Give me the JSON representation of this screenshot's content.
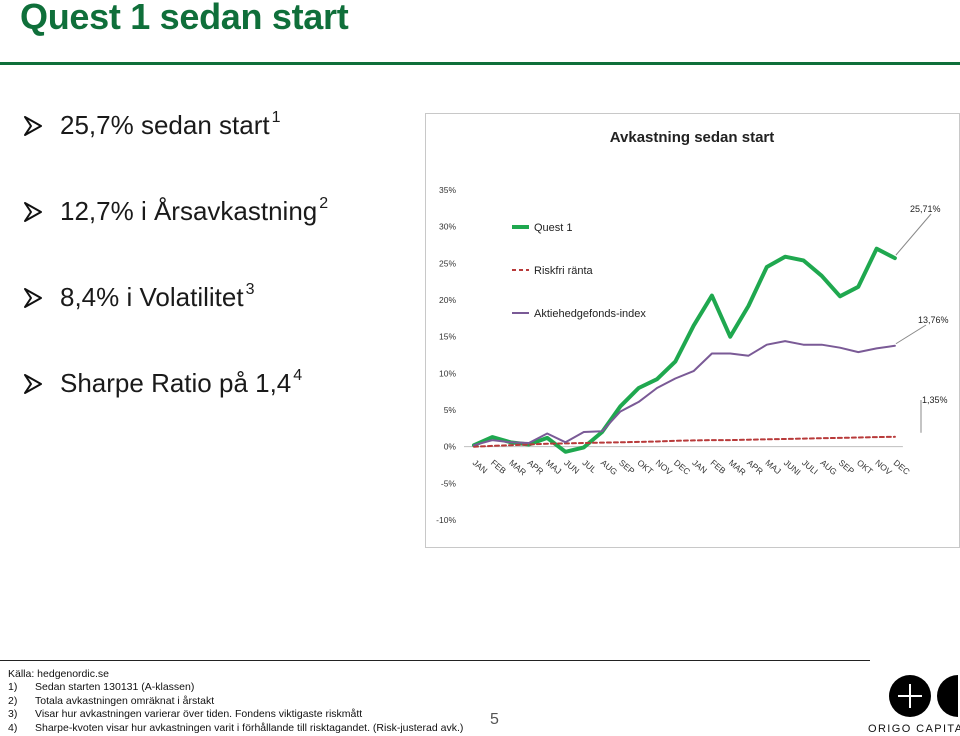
{
  "title": "Quest 1 sedan start",
  "bullets": [
    {
      "text": "25,7% sedan start",
      "sup": "1"
    },
    {
      "text": "12,7% i Årsavkastning",
      "sup": "2"
    },
    {
      "text": "8,4% i Volatilitet",
      "sup": "3"
    },
    {
      "text": "Sharpe Ratio på 1,4",
      "sup": "4"
    }
  ],
  "chart_data": {
    "type": "line",
    "title": "Avkastning sedan start",
    "xlabel": "",
    "ylabel": "",
    "ylim": [
      -10,
      35
    ],
    "yticks": [
      "35%",
      "30%",
      "25%",
      "20%",
      "15%",
      "10%",
      "5%",
      "0%",
      "-5%",
      "-10%"
    ],
    "categories": [
      "JAN",
      "FEB",
      "MAR",
      "APR",
      "MAJ",
      "JUN",
      "JUL",
      "AUG",
      "SEP",
      "OKT",
      "NOV",
      "DEC",
      "JAN",
      "FEB",
      "MAR",
      "APR",
      "MAJ",
      "JUNI",
      "JULI",
      "AUG",
      "SEP",
      "OKT",
      "NOV",
      "DEC"
    ],
    "legend_position": "top-left",
    "grid": false,
    "series": [
      {
        "name": "Quest 1",
        "color": "#1fa84f",
        "style": "solid",
        "values": [
          0.2,
          1.3,
          0.6,
          0.3,
          1.2,
          -0.7,
          -0.1,
          2.0,
          5.5,
          8.0,
          9.2,
          11.6,
          16.5,
          20.6,
          15.0,
          19.2,
          24.5,
          25.9,
          25.4,
          23.3,
          20.5,
          21.8,
          27.0,
          25.71
        ]
      },
      {
        "name": "Riskfri ränta",
        "color": "#b83a3a",
        "style": "dashed",
        "values": [
          0.0,
          0.1,
          0.2,
          0.3,
          0.4,
          0.45,
          0.5,
          0.55,
          0.6,
          0.65,
          0.7,
          0.8,
          0.85,
          0.9,
          0.9,
          0.95,
          1.0,
          1.05,
          1.1,
          1.15,
          1.2,
          1.25,
          1.3,
          1.35
        ]
      },
      {
        "name": "Aktiehedgefonds-index",
        "color": "#7a5a96",
        "style": "solid",
        "values": [
          0.2,
          0.9,
          0.6,
          0.5,
          1.8,
          0.6,
          2.0,
          2.1,
          4.8,
          6.1,
          8.0,
          9.3,
          10.3,
          12.7,
          12.7,
          12.4,
          13.9,
          14.4,
          13.9,
          13.9,
          13.5,
          12.9,
          13.4,
          13.76
        ]
      }
    ],
    "end_labels": [
      "25,71%",
      "13,76%",
      "1,35%"
    ]
  },
  "footnotes": {
    "source": "Källa: hedgenordic.se",
    "items": [
      {
        "num": "1)",
        "text": "Sedan starten 130131 (A-klassen)"
      },
      {
        "num": "2)",
        "text": "Totala avkastningen omräknat i årstakt"
      },
      {
        "num": "3)",
        "text": "Visar hur avkastningen varierar över tiden. Fondens viktigaste riskmått"
      },
      {
        "num": "4)",
        "text": "Sharpe-kvoten visar hur avkastningen varit i förhållande till risktagandet. (Risk-justerad avk.)"
      }
    ]
  },
  "page_number": "5",
  "logo": {
    "text": "ORIGO CAPITAL",
    "icon": "origo-plus-logo-icon"
  }
}
